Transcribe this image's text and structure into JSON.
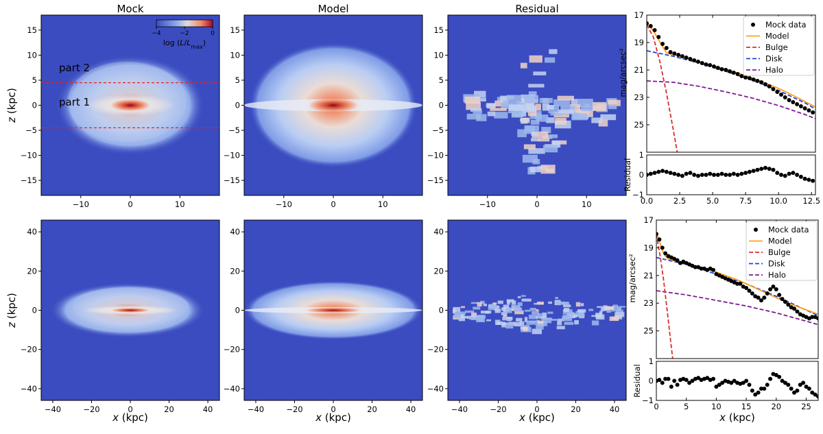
{
  "colors": {
    "map_bg": "#3b4cc0",
    "bulge": "#dd2a2a",
    "disk": "#2040d8",
    "halo": "#7d1a8f",
    "model_line": "#ff9f1c",
    "points": "#000000",
    "annotation": "#e00000"
  },
  "column_titles": [
    "Mock",
    "Model",
    "Residual"
  ],
  "colorbar": {
    "ticks": [
      "−4",
      "−2",
      "0"
    ],
    "label": "log (L/Lₘₐₓ)",
    "label_main": "log (",
    "label_L": "L",
    "label_slash": "/",
    "label_Lsub": "L",
    "label_max": "max",
    "label_close": ")"
  },
  "annotations": {
    "part1": "part 1",
    "part2": "part 2"
  },
  "chart_data": [
    {
      "type": "heatmap",
      "row": 0,
      "xlabel": "",
      "ylabel": "z (kpc)",
      "xlim": [
        -18,
        18
      ],
      "ylim": [
        -18,
        18
      ],
      "xticks": [
        -10,
        0,
        10
      ],
      "yticks": [
        -15,
        -10,
        -5,
        0,
        5,
        10,
        15
      ],
      "xtick_labels": [
        "−10",
        "0",
        "10"
      ],
      "ytick_labels": [
        "−15",
        "−10",
        "−5",
        "0",
        "5",
        "10",
        "15"
      ],
      "cut_lines_z": [
        4.5,
        -4.5
      ]
    },
    {
      "type": "heatmap",
      "row": 1,
      "xlabel": "x (kpc)",
      "ylabel": "z (kpc)",
      "xlim": [
        -46,
        46
      ],
      "ylim": [
        -46,
        46
      ],
      "xticks": [
        -40,
        -20,
        0,
        20,
        40
      ],
      "yticks": [
        -40,
        -20,
        0,
        20,
        40
      ],
      "xtick_labels": [
        "−40",
        "−20",
        "0",
        "20",
        "40"
      ],
      "ytick_labels": [
        "−40",
        "−20",
        "0",
        "20",
        "40"
      ]
    },
    {
      "type": "line",
      "row": 0,
      "ylabel": "mag/arcsec²",
      "ylabel_residual": "Residual",
      "xlim": [
        0,
        12.8
      ],
      "ylim": [
        27,
        17
      ],
      "yticks": [
        17,
        19,
        21,
        23,
        25
      ],
      "ytick_labels": [
        "17",
        "19",
        "21",
        "23",
        "25"
      ],
      "xticks": [
        0,
        2.5,
        5,
        7.5,
        10,
        12.5
      ],
      "xtick_labels": [
        "0.0",
        "2.5",
        "5.0",
        "7.5",
        "10.0",
        "12.5"
      ],
      "residual_ylim": [
        -1,
        1
      ],
      "residual_yticks": [
        1,
        0,
        -1
      ],
      "residual_ytick_labels": [
        "1",
        "0",
        "−1"
      ],
      "legend": [
        "Mock data",
        "Model",
        "Bulge",
        "Disk",
        "Halo"
      ],
      "series": [
        {
          "name": "Mock data",
          "x": [
            0,
            0.3,
            0.6,
            0.9,
            1.2,
            1.5,
            1.8,
            2.1,
            2.4,
            2.7,
            3.0,
            3.3,
            3.6,
            3.9,
            4.2,
            4.5,
            4.8,
            5.1,
            5.4,
            5.7,
            6.0,
            6.3,
            6.6,
            6.9,
            7.2,
            7.5,
            7.8,
            8.1,
            8.4,
            8.7,
            9.0,
            9.3,
            9.6,
            9.9,
            10.2,
            10.5,
            10.8,
            11.1,
            11.4,
            11.7,
            12.0,
            12.3,
            12.6
          ],
          "y": [
            17.6,
            17.8,
            18.1,
            18.6,
            19.1,
            19.4,
            19.7,
            19.8,
            19.9,
            20.0,
            20.1,
            20.2,
            20.3,
            20.4,
            20.5,
            20.6,
            20.65,
            20.75,
            20.85,
            20.95,
            21.0,
            21.1,
            21.2,
            21.3,
            21.45,
            21.55,
            21.6,
            21.7,
            21.8,
            21.9,
            22.05,
            22.2,
            22.4,
            22.6,
            22.8,
            23.0,
            23.2,
            23.35,
            23.5,
            23.65,
            23.8,
            23.95,
            24.1
          ]
        },
        {
          "name": "Model",
          "x": [
            0,
            0.3,
            0.6,
            0.9,
            1.2,
            1.5,
            2,
            2.5,
            3,
            4,
            5,
            6,
            7,
            8,
            9,
            10,
            11,
            12,
            12.8
          ],
          "y": [
            17.6,
            17.9,
            18.3,
            18.8,
            19.3,
            19.75,
            19.9,
            20.0,
            20.15,
            20.45,
            20.7,
            20.95,
            21.25,
            21.6,
            21.95,
            22.35,
            22.8,
            23.3,
            23.7
          ]
        },
        {
          "name": "Bulge",
          "x": [
            0,
            0.5,
            1,
            1.5,
            2,
            2.5
          ],
          "y": [
            17.7,
            18.6,
            20.4,
            22.7,
            25.3,
            28
          ]
        },
        {
          "name": "Disk",
          "x": [
            0,
            2,
            4,
            6,
            8,
            10,
            12,
            12.8
          ],
          "y": [
            19.6,
            20.0,
            20.5,
            21.1,
            21.75,
            22.5,
            23.4,
            23.85
          ]
        },
        {
          "name": "Halo",
          "x": [
            0,
            2,
            4,
            6,
            8,
            10,
            12,
            12.8
          ],
          "y": [
            21.8,
            21.9,
            22.2,
            22.6,
            23.05,
            23.6,
            24.25,
            24.55
          ]
        }
      ],
      "residual": {
        "x": [
          0,
          0.3,
          0.6,
          0.9,
          1.2,
          1.5,
          1.8,
          2.1,
          2.4,
          2.7,
          3.0,
          3.3,
          3.6,
          3.9,
          4.2,
          4.5,
          4.8,
          5.1,
          5.4,
          5.7,
          6.0,
          6.3,
          6.6,
          6.9,
          7.2,
          7.5,
          7.8,
          8.1,
          8.4,
          8.7,
          9.0,
          9.3,
          9.6,
          9.9,
          10.2,
          10.5,
          10.8,
          11.1,
          11.4,
          11.7,
          12.0,
          12.3,
          12.6
        ],
        "y": [
          0.0,
          0.05,
          0.1,
          0.15,
          0.2,
          0.15,
          0.1,
          0.05,
          0.0,
          -0.05,
          0.05,
          0.1,
          0.0,
          -0.05,
          0.0,
          0.0,
          0.05,
          0.0,
          0.0,
          0.05,
          0.0,
          0.0,
          0.05,
          0.0,
          0.05,
          0.1,
          0.15,
          0.2,
          0.25,
          0.3,
          0.35,
          0.3,
          0.25,
          0.1,
          0.0,
          -0.05,
          0.05,
          0.1,
          0.0,
          -0.1,
          -0.2,
          -0.25,
          -0.3
        ]
      }
    },
    {
      "type": "line",
      "row": 1,
      "ylabel": "mag/arcsec²",
      "ylabel_residual": "Residual",
      "xlabel": "x (kpc)",
      "xlim": [
        0,
        27
      ],
      "ylim": [
        27,
        17
      ],
      "yticks": [
        17,
        19,
        21,
        23,
        25
      ],
      "ytick_labels": [
        "17",
        "19",
        "21",
        "23",
        "25"
      ],
      "xticks": [
        0,
        5,
        10,
        15,
        20,
        25
      ],
      "xtick_labels": [
        "0",
        "5",
        "10",
        "15",
        "20",
        "25"
      ],
      "residual_ylim": [
        -1,
        1
      ],
      "residual_yticks": [
        1,
        0,
        -1
      ],
      "residual_ytick_labels": [
        "1",
        "0",
        "−1"
      ],
      "legend": [
        "Mock data",
        "Model",
        "Bulge",
        "Disk",
        "Halo"
      ],
      "series": [
        {
          "name": "Mock data",
          "x": [
            0,
            0.5,
            1,
            1.5,
            2,
            2.5,
            3,
            3.5,
            4,
            4.5,
            5,
            5.5,
            6,
            6.5,
            7,
            7.5,
            8,
            8.5,
            9,
            9.5,
            10,
            10.5,
            11,
            11.5,
            12,
            12.5,
            13,
            13.5,
            14,
            14.5,
            15,
            15.5,
            16,
            16.5,
            17,
            17.5,
            18,
            18.5,
            19,
            19.5,
            20,
            20.5,
            21,
            21.5,
            22,
            22.5,
            23,
            23.5,
            24,
            24.5,
            25,
            25.5,
            26,
            26.5,
            27
          ],
          "y": [
            18.0,
            18.4,
            19.0,
            19.4,
            19.6,
            19.7,
            19.8,
            19.9,
            20.1,
            20.0,
            20.1,
            20.2,
            20.3,
            20.4,
            20.4,
            20.5,
            20.5,
            20.6,
            20.5,
            20.6,
            20.9,
            21.0,
            21.1,
            21.2,
            21.3,
            21.4,
            21.5,
            21.6,
            21.6,
            21.8,
            21.9,
            22.1,
            22.3,
            22.5,
            22.6,
            22.8,
            22.6,
            22.3,
            22.0,
            21.8,
            22.0,
            22.4,
            22.7,
            22.9,
            23.1,
            23.3,
            23.4,
            23.6,
            23.8,
            23.9,
            24.0,
            24.1,
            24.0,
            24.0,
            24.1
          ]
        },
        {
          "name": "Model",
          "x": [
            0,
            0.5,
            1,
            1.5,
            2,
            3,
            5,
            10,
            14,
            18,
            22,
            27
          ],
          "y": [
            17.9,
            18.5,
            19.2,
            19.6,
            19.8,
            19.95,
            20.1,
            20.75,
            21.4,
            22.2,
            23.0,
            23.8
          ]
        },
        {
          "name": "Bulge",
          "x": [
            0,
            0.6,
            1.2,
            1.8,
            2.4,
            3.0
          ],
          "y": [
            18.0,
            19.5,
            21.3,
            23.5,
            25.8,
            28
          ]
        },
        {
          "name": "Disk",
          "x": [
            0,
            5,
            10,
            15,
            20,
            25,
            27
          ],
          "y": [
            19.7,
            20.2,
            20.9,
            21.6,
            22.5,
            23.5,
            23.9
          ]
        },
        {
          "name": "Halo",
          "x": [
            0,
            5,
            10,
            15,
            20,
            25,
            27
          ],
          "y": [
            22.1,
            22.4,
            22.8,
            23.2,
            23.7,
            24.3,
            24.55
          ]
        }
      ],
      "residual": {
        "x": [
          0,
          0.5,
          1,
          1.5,
          2,
          2.5,
          3,
          3.5,
          4,
          4.5,
          5,
          5.5,
          6,
          6.5,
          7,
          7.5,
          8,
          8.5,
          9,
          9.5,
          10,
          10.5,
          11,
          11.5,
          12,
          12.5,
          13,
          13.5,
          14,
          14.5,
          15,
          15.5,
          16,
          16.5,
          17,
          17.5,
          18,
          18.5,
          19,
          19.5,
          20,
          20.5,
          21,
          21.5,
          22,
          22.5,
          23,
          23.5,
          24,
          24.5,
          25,
          25.5,
          26,
          26.5,
          27
        ],
        "y": [
          0.0,
          0.05,
          -0.1,
          0.1,
          0.1,
          -0.3,
          0.0,
          -0.2,
          0.05,
          0.1,
          0.05,
          -0.1,
          0.0,
          0.1,
          0.15,
          0.05,
          0.1,
          0.15,
          0.05,
          0.1,
          -0.3,
          -0.2,
          -0.1,
          0.0,
          -0.05,
          -0.1,
          0.0,
          -0.1,
          -0.15,
          -0.1,
          0.0,
          -0.2,
          -0.5,
          -0.7,
          -0.6,
          -0.4,
          -0.4,
          -0.2,
          0.1,
          0.35,
          0.3,
          0.2,
          0.0,
          -0.1,
          -0.2,
          -0.4,
          -0.6,
          -0.5,
          -0.2,
          -0.1,
          -0.3,
          -0.4,
          -0.6,
          -0.7,
          -0.8
        ]
      }
    }
  ]
}
